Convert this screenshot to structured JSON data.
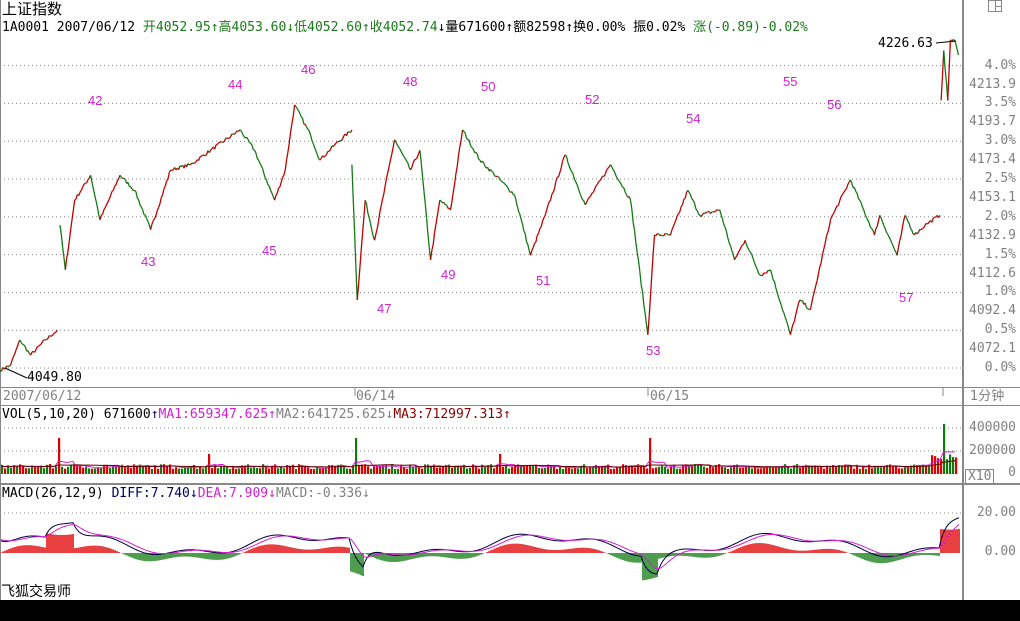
{
  "header": {
    "title": "上证指数",
    "code": "1A0001",
    "date": "2007/06/12",
    "open": "开4052.95",
    "high": "高4053.60",
    "low": "低4052.60",
    "close": "收4052.74",
    "volume": "量671600",
    "amount": "额82598",
    "turnover": "换0.00%",
    "amplitude": "振0.02%",
    "change": "涨(-0.89)-0.02%"
  },
  "price_axis": {
    "pct_labels": [
      "4.0%",
      "3.5%",
      "3.0%",
      "2.5%",
      "2.0%",
      "1.5%",
      "1.0%",
      "0.5%",
      "0.0%"
    ],
    "price_labels": [
      "4213.9",
      "4193.7",
      "4173.4",
      "4153.1",
      "4132.9",
      "4112.6",
      "4092.4",
      "4072.1"
    ],
    "max_label": "4226.63",
    "min_label": "4049.80"
  },
  "date_axis": {
    "labels": [
      "2007/06/12",
      "06/14",
      "06/15"
    ],
    "period": "1分钟"
  },
  "waves": [
    "42",
    "43",
    "44",
    "45",
    "46",
    "47",
    "48",
    "49",
    "50",
    "51",
    "52",
    "53",
    "54",
    "55",
    "56",
    "57"
  ],
  "vol": {
    "title": "VOL(5,10,20)",
    "value": "671600",
    "ma1": "MA1:659347.625",
    "ma2": "MA2:641725.625",
    "ma3": "MA3:712997.313",
    "axis": [
      "400000",
      "200000",
      "0"
    ],
    "scale": "X10"
  },
  "macd": {
    "title": "MACD(26,12,9)",
    "diff": "DIFF:7.740",
    "dea": "DEA:7.909",
    "macd": "MACD:-0.336",
    "axis": [
      "20.00",
      "0.00"
    ]
  },
  "footer": {
    "brand": "飞狐交易师"
  },
  "colors": {
    "up": "#e00000",
    "down": "#137a13",
    "ma1": "#d020d0",
    "grid": "#808080"
  },
  "price_series_pct": [
    [
      [
        0,
        -0.03
      ],
      [
        8,
        0.04
      ],
      [
        15,
        0.37
      ],
      [
        23,
        0.17
      ],
      [
        34,
        0.37
      ],
      [
        43,
        0.5
      ]
    ],
    [
      [
        45,
        1.89
      ],
      [
        49,
        1.3
      ],
      [
        56,
        2.22
      ],
      [
        68,
        2.55
      ],
      [
        75,
        1.96
      ],
      [
        90,
        2.55
      ],
      [
        101,
        2.35
      ],
      [
        113,
        1.83
      ],
      [
        128,
        2.62
      ],
      [
        143,
        2.69
      ],
      [
        158,
        2.88
      ],
      [
        180,
        3.15
      ],
      [
        191,
        2.88
      ],
      [
        206,
        2.22
      ],
      [
        214,
        2.62
      ],
      [
        221,
        3.48
      ],
      [
        233,
        3.08
      ],
      [
        240,
        2.75
      ],
      [
        251,
        2.95
      ],
      [
        264,
        3.15
      ]
    ],
    [
      [
        264,
        2.69
      ],
      [
        268,
        0.9
      ],
      [
        274,
        2.22
      ],
      [
        281,
        1.69
      ],
      [
        296,
        3.02
      ],
      [
        308,
        2.62
      ],
      [
        315,
        2.88
      ],
      [
        323,
        1.43
      ],
      [
        330,
        2.22
      ],
      [
        338,
        2.09
      ],
      [
        347,
        3.15
      ],
      [
        360,
        2.75
      ],
      [
        375,
        2.49
      ],
      [
        386,
        2.29
      ],
      [
        398,
        1.49
      ],
      [
        409,
        2.02
      ],
      [
        424,
        2.82
      ],
      [
        439,
        2.16
      ],
      [
        458,
        2.69
      ],
      [
        473,
        2.22
      ],
      [
        486,
        0.44
      ]
    ],
    [
      [
        486,
        0.44
      ],
      [
        491,
        1.76
      ],
      [
        503,
        1.76
      ],
      [
        516,
        2.35
      ],
      [
        525,
        2.02
      ],
      [
        540,
        2.09
      ],
      [
        551,
        1.43
      ],
      [
        559,
        1.69
      ],
      [
        570,
        1.23
      ],
      [
        578,
        1.3
      ],
      [
        593,
        0.44
      ],
      [
        600,
        0.9
      ],
      [
        608,
        0.77
      ],
      [
        623,
        1.96
      ],
      [
        638,
        2.49
      ],
      [
        656,
        1.76
      ],
      [
        660,
        2.02
      ],
      [
        673,
        1.49
      ],
      [
        679,
        2.02
      ],
      [
        686,
        1.76
      ],
      [
        694,
        1.89
      ],
      [
        705,
        2.02
      ]
    ],
    [
      [
        706,
        3.54
      ],
      [
        708,
        4.2
      ],
      [
        711,
        3.54
      ],
      [
        713,
        4.34
      ],
      [
        716,
        4.34
      ],
      [
        719,
        4.14
      ]
    ]
  ]
}
